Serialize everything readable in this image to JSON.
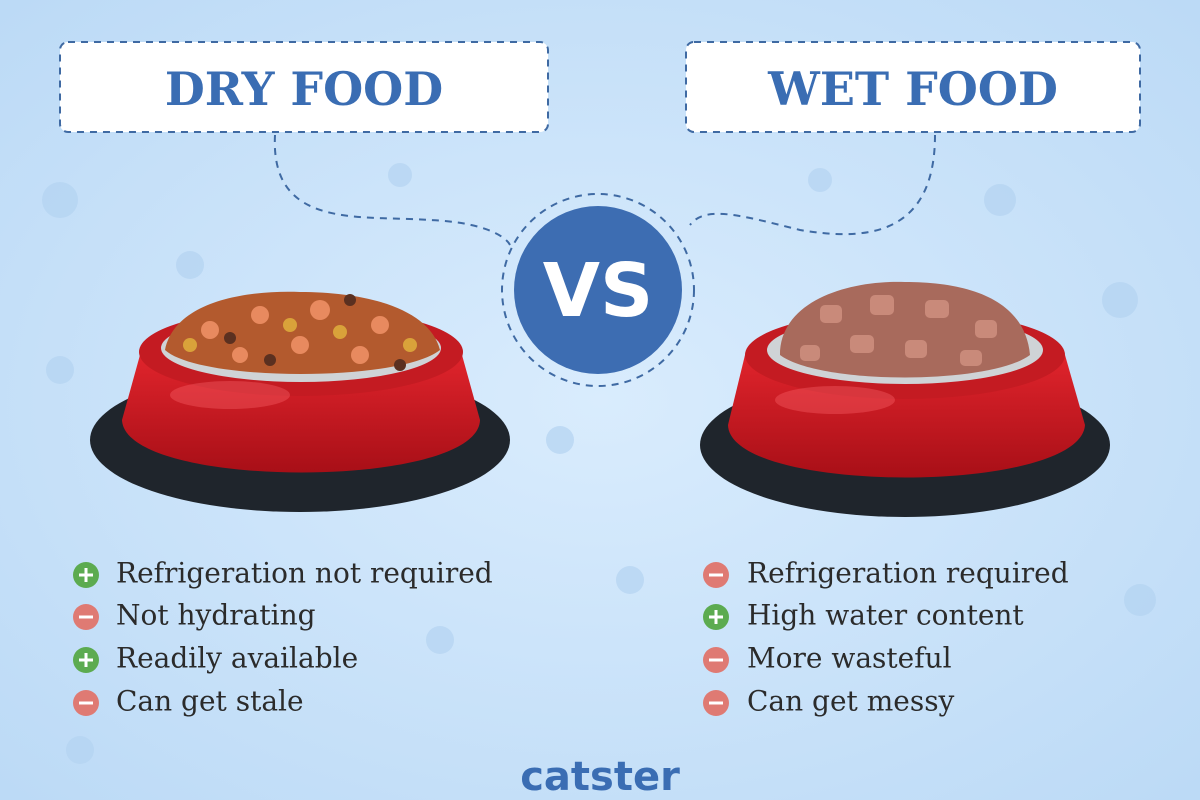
{
  "left": {
    "title": "DRY FOOD",
    "items": [
      "Refrigeration not required",
      "Not hydrating",
      "Readily available",
      "Can get stale"
    ]
  },
  "center": {
    "label": "VS"
  },
  "right": {
    "title": "WET FOOD",
    "items": [
      "Refrigeration required",
      "High water content",
      "More wasteful",
      "Can get messy"
    ]
  },
  "footer": {
    "brand": "catster"
  }
}
